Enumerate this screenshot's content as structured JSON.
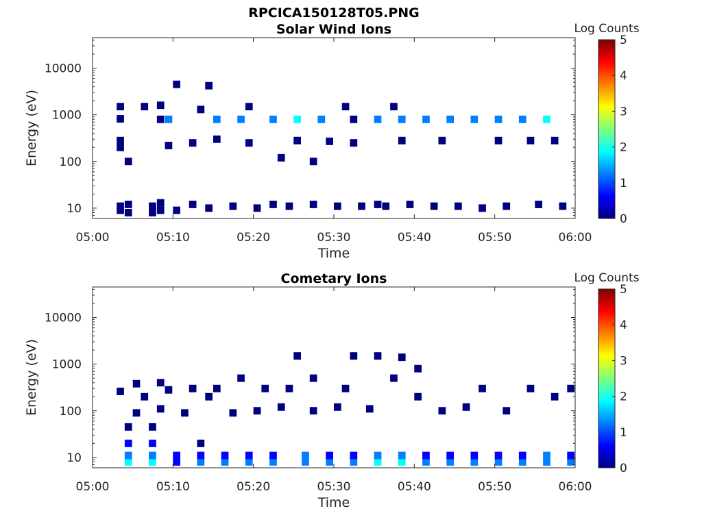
{
  "figure_title": "RPCICA150128T05.PNG",
  "colorbar": {
    "label": "Log Counts",
    "ticks": [
      "5",
      "4",
      "3",
      "2",
      "1",
      "0"
    ],
    "range": [
      0,
      5
    ],
    "colors": [
      "#00007f",
      "#0000ff",
      "#007fff",
      "#00ffff",
      "#7fff7f",
      "#ffff00",
      "#ff7f00",
      "#ff0000",
      "#7f0000"
    ]
  },
  "chart_data": [
    {
      "type": "heatmap",
      "title": "Solar Wind Ions",
      "xlabel": "Time",
      "ylabel": "Energy (eV)",
      "xlim": [
        "05:00",
        "06:00"
      ],
      "xticks": [
        "05:00",
        "05:10",
        "05:20",
        "05:30",
        "05:40",
        "05:50",
        "06:00"
      ],
      "ylim": [
        6,
        45000
      ],
      "yscale": "log",
      "yticks": [
        "10",
        "100",
        "1000",
        "10000"
      ],
      "zlim": [
        0,
        5
      ],
      "cells": [
        {
          "t": "05:03",
          "e": 11,
          "v": 0.1
        },
        {
          "t": "05:03",
          "e": 9,
          "v": 0.1
        },
        {
          "t": "05:04",
          "e": 12,
          "v": 0.1
        },
        {
          "t": "05:04",
          "e": 8,
          "v": 0.1
        },
        {
          "t": "05:03",
          "e": 820,
          "v": 0.3
        },
        {
          "t": "05:03",
          "e": 1500,
          "v": 0.1
        },
        {
          "t": "05:03",
          "e": 280,
          "v": 0.1
        },
        {
          "t": "05:03",
          "e": 200,
          "v": 0.1
        },
        {
          "t": "05:04",
          "e": 100,
          "v": 0.1
        },
        {
          "t": "05:06",
          "e": 1500,
          "v": 0.1
        },
        {
          "t": "05:07",
          "e": 11,
          "v": 0.1
        },
        {
          "t": "05:07",
          "e": 8,
          "v": 0.1
        },
        {
          "t": "05:08",
          "e": 13,
          "v": 0.1
        },
        {
          "t": "05:08",
          "e": 9,
          "v": 0.1
        },
        {
          "t": "05:08",
          "e": 800,
          "v": 0.1
        },
        {
          "t": "05:08",
          "e": 1600,
          "v": 0.1
        },
        {
          "t": "05:09",
          "e": 800,
          "v": 1.4
        },
        {
          "t": "05:09",
          "e": 220,
          "v": 0.1
        },
        {
          "t": "05:10",
          "e": 9,
          "v": 0.1
        },
        {
          "t": "05:10",
          "e": 4500,
          "v": 0.1
        },
        {
          "t": "05:12",
          "e": 250,
          "v": 0.1
        },
        {
          "t": "05:12",
          "e": 12,
          "v": 0.1
        },
        {
          "t": "05:13",
          "e": 1300,
          "v": 0.1
        },
        {
          "t": "05:14",
          "e": 4200,
          "v": 0.1
        },
        {
          "t": "05:14",
          "e": 10,
          "v": 0.1
        },
        {
          "t": "05:15",
          "e": 800,
          "v": 1.4
        },
        {
          "t": "05:15",
          "e": 300,
          "v": 0.1
        },
        {
          "t": "05:17",
          "e": 11,
          "v": 0.1
        },
        {
          "t": "05:18",
          "e": 800,
          "v": 1.4
        },
        {
          "t": "05:19",
          "e": 1500,
          "v": 0.1
        },
        {
          "t": "05:19",
          "e": 250,
          "v": 0.1
        },
        {
          "t": "05:20",
          "e": 10,
          "v": 0.1
        },
        {
          "t": "05:22",
          "e": 800,
          "v": 1.4
        },
        {
          "t": "05:22",
          "e": 12,
          "v": 0.1
        },
        {
          "t": "05:23",
          "e": 120,
          "v": 0.1
        },
        {
          "t": "05:24",
          "e": 11,
          "v": 0.1
        },
        {
          "t": "05:25",
          "e": 800,
          "v": 1.6
        },
        {
          "t": "05:25",
          "e": 280,
          "v": 0.1
        },
        {
          "t": "05:27",
          "e": 12,
          "v": 0.1
        },
        {
          "t": "05:27",
          "e": 100,
          "v": 0.1
        },
        {
          "t": "05:28",
          "e": 800,
          "v": 1.4
        },
        {
          "t": "05:29",
          "e": 270,
          "v": 0.1
        },
        {
          "t": "05:30",
          "e": 11,
          "v": 0.1
        },
        {
          "t": "05:31",
          "e": 1500,
          "v": 0.1
        },
        {
          "t": "05:32",
          "e": 800,
          "v": 0.1
        },
        {
          "t": "05:32",
          "e": 250,
          "v": 0.1
        },
        {
          "t": "05:33",
          "e": 11,
          "v": 0.1
        },
        {
          "t": "05:35",
          "e": 800,
          "v": 1.4
        },
        {
          "t": "05:35",
          "e": 12,
          "v": 0.1
        },
        {
          "t": "05:36",
          "e": 11,
          "v": 0.1
        },
        {
          "t": "05:37",
          "e": 1500,
          "v": 0.1
        },
        {
          "t": "05:38",
          "e": 800,
          "v": 1.4
        },
        {
          "t": "05:38",
          "e": 280,
          "v": 0.1
        },
        {
          "t": "05:39",
          "e": 12,
          "v": 0.1
        },
        {
          "t": "05:41",
          "e": 800,
          "v": 1.4
        },
        {
          "t": "05:42",
          "e": 11,
          "v": 0.1
        },
        {
          "t": "05:43",
          "e": 280,
          "v": 0.1
        },
        {
          "t": "05:44",
          "e": 800,
          "v": 1.4
        },
        {
          "t": "05:45",
          "e": 11,
          "v": 0.1
        },
        {
          "t": "05:47",
          "e": 800,
          "v": 1.4
        },
        {
          "t": "05:48",
          "e": 10,
          "v": 0.1
        },
        {
          "t": "05:50",
          "e": 800,
          "v": 1.4
        },
        {
          "t": "05:50",
          "e": 280,
          "v": 0.1
        },
        {
          "t": "05:51",
          "e": 11,
          "v": 0.1
        },
        {
          "t": "05:53",
          "e": 800,
          "v": 1.4
        },
        {
          "t": "05:54",
          "e": 280,
          "v": 0.1
        },
        {
          "t": "05:55",
          "e": 12,
          "v": 0.1
        },
        {
          "t": "05:56",
          "e": 800,
          "v": 1.6
        },
        {
          "t": "05:57",
          "e": 280,
          "v": 0.1
        },
        {
          "t": "05:58",
          "e": 11,
          "v": 0.1
        }
      ]
    },
    {
      "type": "heatmap",
      "title": "Cometary Ions",
      "xlabel": "Time",
      "ylabel": "Energy (eV)",
      "xlim": [
        "05:00",
        "06:00"
      ],
      "xticks": [
        "05:00",
        "05:10",
        "05:20",
        "05:30",
        "05:40",
        "05:50",
        "06:00"
      ],
      "ylim": [
        6,
        45000
      ],
      "yscale": "log",
      "yticks": [
        "10",
        "100",
        "1000",
        "10000"
      ],
      "zlim": [
        0,
        5
      ],
      "cells": [
        {
          "t": "05:03",
          "e": 260,
          "v": 0.1
        },
        {
          "t": "05:04",
          "e": 8,
          "v": 1.8
        },
        {
          "t": "05:04",
          "e": 11,
          "v": 1.2
        },
        {
          "t": "05:04",
          "e": 20,
          "v": 0.4
        },
        {
          "t": "05:04",
          "e": 45,
          "v": 0.1
        },
        {
          "t": "05:05",
          "e": 90,
          "v": 0.1
        },
        {
          "t": "05:05",
          "e": 380,
          "v": 0.1
        },
        {
          "t": "05:06",
          "e": 200,
          "v": 0.1
        },
        {
          "t": "05:07",
          "e": 8,
          "v": 1.8
        },
        {
          "t": "05:07",
          "e": 11,
          "v": 1.3
        },
        {
          "t": "05:07",
          "e": 20,
          "v": 0.4
        },
        {
          "t": "05:07",
          "e": 45,
          "v": 0.1
        },
        {
          "t": "05:08",
          "e": 110,
          "v": 0.1
        },
        {
          "t": "05:08",
          "e": 400,
          "v": 0.1
        },
        {
          "t": "05:09",
          "e": 280,
          "v": 0.1
        },
        {
          "t": "05:10",
          "e": 8,
          "v": 0.8
        },
        {
          "t": "05:10",
          "e": 11,
          "v": 0.6
        },
        {
          "t": "05:11",
          "e": 90,
          "v": 0.1
        },
        {
          "t": "05:12",
          "e": 300,
          "v": 0.1
        },
        {
          "t": "05:13",
          "e": 8,
          "v": 1.2
        },
        {
          "t": "05:13",
          "e": 11,
          "v": 0.8
        },
        {
          "t": "05:13",
          "e": 20,
          "v": 0.2
        },
        {
          "t": "05:14",
          "e": 200,
          "v": 0.1
        },
        {
          "t": "05:15",
          "e": 300,
          "v": 0.1
        },
        {
          "t": "05:16",
          "e": 8,
          "v": 1.0
        },
        {
          "t": "05:16",
          "e": 11,
          "v": 0.7
        },
        {
          "t": "05:17",
          "e": 90,
          "v": 0.1
        },
        {
          "t": "05:18",
          "e": 500,
          "v": 0.1
        },
        {
          "t": "05:19",
          "e": 8,
          "v": 1.1
        },
        {
          "t": "05:19",
          "e": 11,
          "v": 0.8
        },
        {
          "t": "05:20",
          "e": 100,
          "v": 0.1
        },
        {
          "t": "05:21",
          "e": 300,
          "v": 0.1
        },
        {
          "t": "05:22",
          "e": 8,
          "v": 1.4
        },
        {
          "t": "05:22",
          "e": 11,
          "v": 0.9
        },
        {
          "t": "05:23",
          "e": 120,
          "v": 0.1
        },
        {
          "t": "05:24",
          "e": 300,
          "v": 0.1
        },
        {
          "t": "05:25",
          "e": 1500,
          "v": 0.1
        },
        {
          "t": "05:26",
          "e": 8,
          "v": 1.4
        },
        {
          "t": "05:26",
          "e": 11,
          "v": 1.0
        },
        {
          "t": "05:27",
          "e": 100,
          "v": 0.1
        },
        {
          "t": "05:27",
          "e": 500,
          "v": 0.1
        },
        {
          "t": "05:29",
          "e": 8,
          "v": 1.2
        },
        {
          "t": "05:29",
          "e": 11,
          "v": 0.8
        },
        {
          "t": "05:30",
          "e": 120,
          "v": 0.1
        },
        {
          "t": "05:31",
          "e": 300,
          "v": 0.1
        },
        {
          "t": "05:32",
          "e": 1500,
          "v": 0.1
        },
        {
          "t": "05:32",
          "e": 8,
          "v": 1.3
        },
        {
          "t": "05:32",
          "e": 11,
          "v": 0.9
        },
        {
          "t": "05:34",
          "e": 110,
          "v": 0.1
        },
        {
          "t": "05:35",
          "e": 1500,
          "v": 0.1
        },
        {
          "t": "05:35",
          "e": 8,
          "v": 1.6
        },
        {
          "t": "05:35",
          "e": 11,
          "v": 1.1
        },
        {
          "t": "05:37",
          "e": 500,
          "v": 0.1
        },
        {
          "t": "05:38",
          "e": 1400,
          "v": 0.1
        },
        {
          "t": "05:38",
          "e": 8,
          "v": 1.7
        },
        {
          "t": "05:38",
          "e": 11,
          "v": 1.2
        },
        {
          "t": "05:40",
          "e": 200,
          "v": 0.1
        },
        {
          "t": "05:40",
          "e": 800,
          "v": 0.1
        },
        {
          "t": "05:41",
          "e": 8,
          "v": 1.4
        },
        {
          "t": "05:41",
          "e": 11,
          "v": 0.9
        },
        {
          "t": "05:43",
          "e": 100,
          "v": 0.1
        },
        {
          "t": "05:44",
          "e": 8,
          "v": 1.3
        },
        {
          "t": "05:44",
          "e": 11,
          "v": 0.9
        },
        {
          "t": "05:46",
          "e": 120,
          "v": 0.1
        },
        {
          "t": "05:47",
          "e": 8,
          "v": 1.1
        },
        {
          "t": "05:47",
          "e": 11,
          "v": 0.8
        },
        {
          "t": "05:48",
          "e": 300,
          "v": 0.1
        },
        {
          "t": "05:50",
          "e": 8,
          "v": 1.2
        },
        {
          "t": "05:50",
          "e": 11,
          "v": 0.8
        },
        {
          "t": "05:51",
          "e": 100,
          "v": 0.1
        },
        {
          "t": "05:53",
          "e": 8,
          "v": 1.3
        },
        {
          "t": "05:53",
          "e": 11,
          "v": 0.9
        },
        {
          "t": "05:54",
          "e": 300,
          "v": 0.1
        },
        {
          "t": "05:56",
          "e": 8,
          "v": 1.4
        },
        {
          "t": "05:56",
          "e": 11,
          "v": 1.0
        },
        {
          "t": "05:57",
          "e": 200,
          "v": 0.1
        },
        {
          "t": "05:59",
          "e": 8,
          "v": 1.2
        },
        {
          "t": "05:59",
          "e": 11,
          "v": 0.8
        },
        {
          "t": "05:59",
          "e": 300,
          "v": 0.1
        }
      ]
    }
  ]
}
